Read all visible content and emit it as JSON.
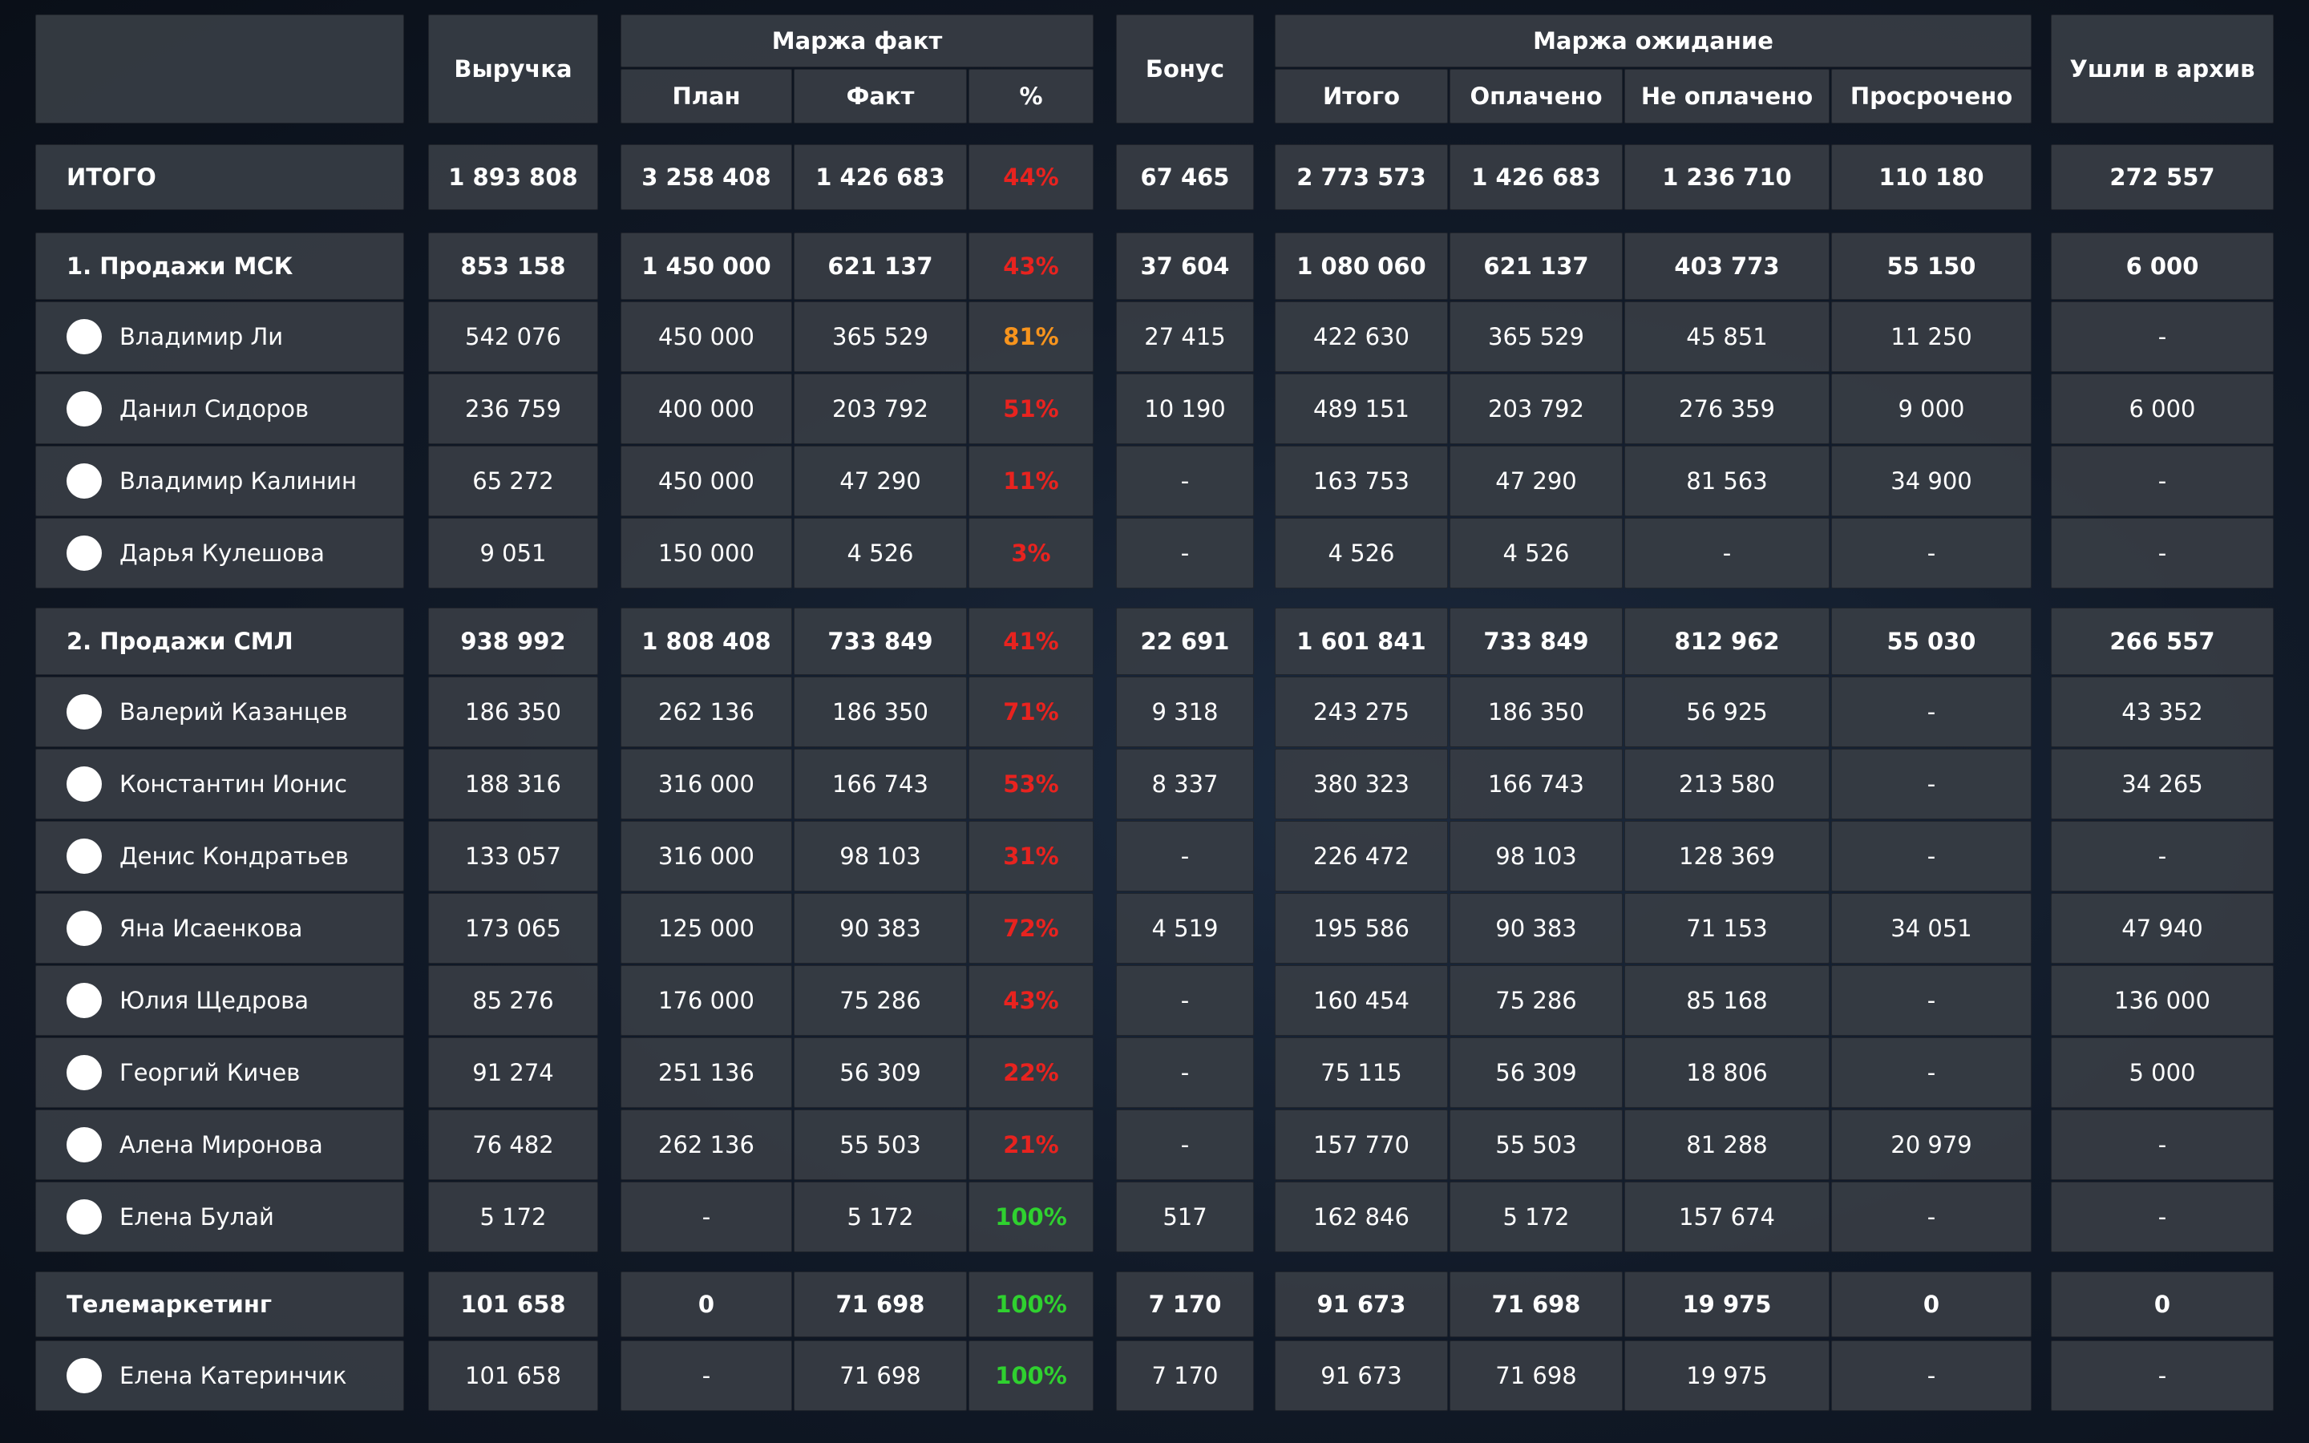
{
  "header": {
    "revenue": "Выручка",
    "margin_fact": "Маржа факт",
    "plan": "План",
    "fact": "Факт",
    "pct": "%",
    "bonus": "Бонус",
    "margin_expect": "Маржа ожидание",
    "total": "Итого",
    "paid": "Оплачено",
    "unpaid": "Не оплачено",
    "overdue": "Просрочено",
    "archive": "Ушли в архив"
  },
  "colors": {
    "red": "#e8231f",
    "orange": "#f7941d",
    "green": "#2fd12f"
  },
  "rows": [
    {
      "kind": "total",
      "name": "ИТОГО",
      "revenue": "1 893 808",
      "plan": "3 258 408",
      "fact": "1 426 683",
      "pct": "44%",
      "pct_color": "red",
      "bonus": "67 465",
      "total": "2 773 573",
      "paid": "1 426 683",
      "unpaid": "1 236 710",
      "overdue": "110 180",
      "archive": "272 557"
    },
    {
      "kind": "group",
      "name": "1. Продажи МСК",
      "revenue": "853 158",
      "plan": "1 450 000",
      "fact": "621 137",
      "pct": "43%",
      "pct_color": "red",
      "bonus": "37 604",
      "total": "1 080 060",
      "paid": "621 137",
      "unpaid": "403 773",
      "overdue": "55 150",
      "archive": "6 000"
    },
    {
      "kind": "person",
      "name": "Владимир Ли",
      "revenue": "542 076",
      "plan": "450 000",
      "fact": "365 529",
      "pct": "81%",
      "pct_color": "orange",
      "bonus": "27 415",
      "total": "422 630",
      "paid": "365 529",
      "unpaid": "45 851",
      "overdue": "11 250",
      "archive": "-"
    },
    {
      "kind": "person",
      "name": "Данил Сидоров",
      "revenue": "236 759",
      "plan": "400 000",
      "fact": "203 792",
      "pct": "51%",
      "pct_color": "red",
      "bonus": "10 190",
      "total": "489 151",
      "paid": "203 792",
      "unpaid": "276 359",
      "overdue": "9 000",
      "archive": "6 000"
    },
    {
      "kind": "person",
      "name": "Владимир Калинин",
      "revenue": "65 272",
      "plan": "450 000",
      "fact": "47 290",
      "pct": "11%",
      "pct_color": "red",
      "bonus": "-",
      "total": "163 753",
      "paid": "47 290",
      "unpaid": "81 563",
      "overdue": "34 900",
      "archive": "-"
    },
    {
      "kind": "person",
      "name": "Дарья Кулешова",
      "revenue": "9 051",
      "plan": "150 000",
      "fact": "4 526",
      "pct": "3%",
      "pct_color": "red",
      "bonus": "-",
      "total": "4 526",
      "paid": "4 526",
      "unpaid": "-",
      "overdue": "-",
      "archive": "-"
    },
    {
      "kind": "group",
      "name": "2. Продажи СМЛ",
      "revenue": "938 992",
      "plan": "1 808 408",
      "fact": "733 849",
      "pct": "41%",
      "pct_color": "red",
      "bonus": "22 691",
      "total": "1 601 841",
      "paid": "733 849",
      "unpaid": "812 962",
      "overdue": "55 030",
      "archive": "266 557"
    },
    {
      "kind": "person",
      "name": "Валерий Казанцев",
      "revenue": "186 350",
      "plan": "262 136",
      "fact": "186 350",
      "pct": "71%",
      "pct_color": "red",
      "bonus": "9 318",
      "total": "243 275",
      "paid": "186 350",
      "unpaid": "56 925",
      "overdue": "-",
      "archive": "43 352"
    },
    {
      "kind": "person",
      "name": "Константин Ионис",
      "revenue": "188 316",
      "plan": "316 000",
      "fact": "166 743",
      "pct": "53%",
      "pct_color": "red",
      "bonus": "8 337",
      "total": "380 323",
      "paid": "166 743",
      "unpaid": "213 580",
      "overdue": "-",
      "archive": "34 265"
    },
    {
      "kind": "person",
      "name": "Денис Кондратьев",
      "revenue": "133 057",
      "plan": "316 000",
      "fact": "98 103",
      "pct": "31%",
      "pct_color": "red",
      "bonus": "-",
      "total": "226 472",
      "paid": "98 103",
      "unpaid": "128 369",
      "overdue": "-",
      "archive": "-"
    },
    {
      "kind": "person",
      "name": "Яна Исаенкова",
      "revenue": "173 065",
      "plan": "125 000",
      "fact": "90 383",
      "pct": "72%",
      "pct_color": "red",
      "bonus": "4 519",
      "total": "195 586",
      "paid": "90 383",
      "unpaid": "71 153",
      "overdue": "34 051",
      "archive": "47 940"
    },
    {
      "kind": "person",
      "name": "Юлия Щедрова",
      "revenue": "85 276",
      "plan": "176 000",
      "fact": "75 286",
      "pct": "43%",
      "pct_color": "red",
      "bonus": "-",
      "total": "160 454",
      "paid": "75 286",
      "unpaid": "85 168",
      "overdue": "-",
      "archive": "136 000"
    },
    {
      "kind": "person",
      "name": "Георгий Кичев",
      "revenue": "91 274",
      "plan": "251 136",
      "fact": "56 309",
      "pct": "22%",
      "pct_color": "red",
      "bonus": "-",
      "total": "75 115",
      "paid": "56 309",
      "unpaid": "18 806",
      "overdue": "-",
      "archive": "5 000"
    },
    {
      "kind": "person",
      "name": "Алена Миронова",
      "revenue": "76 482",
      "plan": "262 136",
      "fact": "55 503",
      "pct": "21%",
      "pct_color": "red",
      "bonus": "-",
      "total": "157 770",
      "paid": "55 503",
      "unpaid": "81 288",
      "overdue": "20 979",
      "archive": "-"
    },
    {
      "kind": "person",
      "name": "Елена Булай",
      "revenue": "5 172",
      "plan": "-",
      "fact": "5 172",
      "pct": "100%",
      "pct_color": "green",
      "bonus": "517",
      "total": "162 846",
      "paid": "5 172",
      "unpaid": "157 674",
      "overdue": "-",
      "archive": "-"
    },
    {
      "kind": "group",
      "name": "Телемаркетинг",
      "revenue": "101 658",
      "plan": "0",
      "fact": "71 698",
      "pct": "100%",
      "pct_color": "green",
      "bonus": "7 170",
      "total": "91 673",
      "paid": "71 698",
      "unpaid": "19 975",
      "overdue": "0",
      "archive": "0"
    },
    {
      "kind": "person",
      "name": "Елена Катеринчик",
      "revenue": "101 658",
      "plan": "-",
      "fact": "71 698",
      "pct": "100%",
      "pct_color": "green",
      "bonus": "7 170",
      "total": "91 673",
      "paid": "71 698",
      "unpaid": "19 975",
      "overdue": "-",
      "archive": "-"
    }
  ]
}
